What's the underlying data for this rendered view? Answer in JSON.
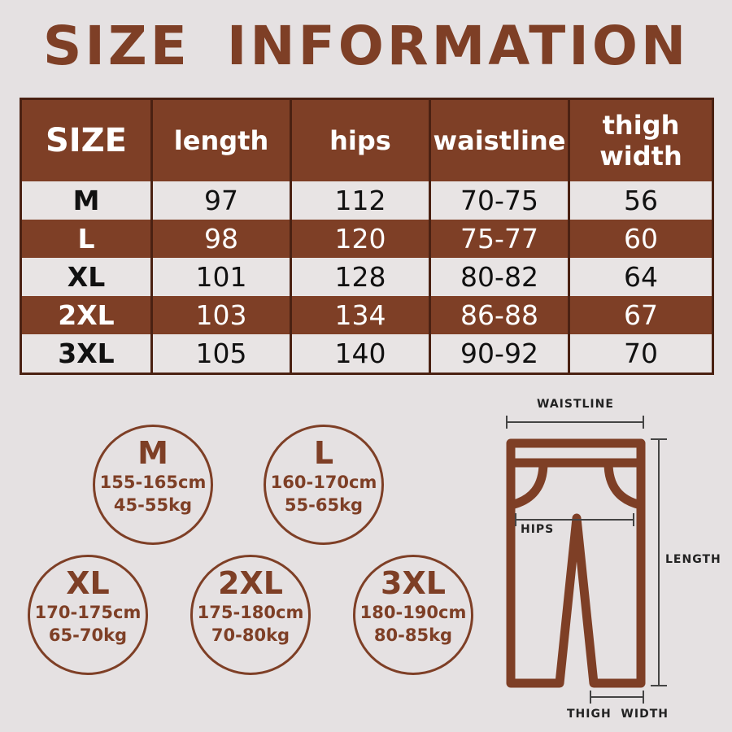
{
  "title": "SIZE INFORMATION",
  "table": {
    "headers": [
      "SIZE",
      "length",
      "hips",
      "waistline",
      "thigh width"
    ],
    "rows": [
      [
        "M",
        "97",
        "112",
        "70-75",
        "56"
      ],
      [
        "L",
        "98",
        "120",
        "75-77",
        "60"
      ],
      [
        "XL",
        "101",
        "128",
        "80-82",
        "64"
      ],
      [
        "2XL",
        "103",
        "134",
        "86-88",
        "67"
      ],
      [
        "3XL",
        "105",
        "140",
        "90-92",
        "70"
      ]
    ]
  },
  "recommendations": [
    {
      "size": "M",
      "height": "155-165cm",
      "weight": "45-55kg"
    },
    {
      "size": "L",
      "height": "160-170cm",
      "weight": "55-65kg"
    },
    {
      "size": "XL",
      "height": "170-175cm",
      "weight": "65-70kg"
    },
    {
      "size": "2XL",
      "height": "175-180cm",
      "weight": "70-80kg"
    },
    {
      "size": "3XL",
      "height": "180-190cm",
      "weight": "80-85kg"
    }
  ],
  "diagram": {
    "waistline": "WAISTLINE",
    "hips": "HIPS",
    "length": "LENGTH",
    "thigh_width": "THIGH  WIDTH"
  },
  "colors": {
    "brand": "#7e3f26",
    "border": "#4a2112",
    "background": "#e5e1e2"
  }
}
